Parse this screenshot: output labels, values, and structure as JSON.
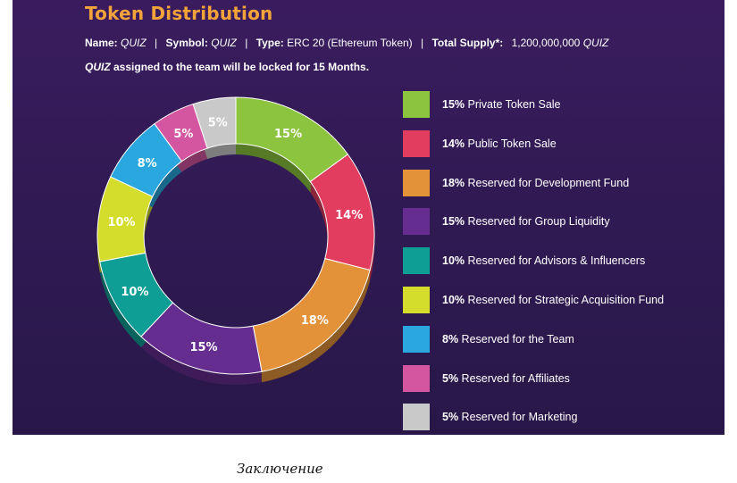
{
  "header": {
    "title": "Token Distribution",
    "name_label": "Name:",
    "name_value": "QUIZ",
    "symbol_label": "Symbol:",
    "symbol_value": "QUIZ",
    "type_label": "Type:",
    "type_value": "ERC 20 (Ethereum Token)",
    "supply_label": "Total Supply*:",
    "supply_value": "1,200,000,000",
    "supply_unit": "QUIZ",
    "separator": "|",
    "lock_token": "QUIZ",
    "lock_text": " assigned to the team will be locked for 15 Months."
  },
  "chart_data": {
    "type": "pie",
    "title": "Token Distribution",
    "unit": "%",
    "slices": [
      {
        "label": "Private Token Sale",
        "value": 15,
        "color": "#8cc43f"
      },
      {
        "label": "Public Token Sale",
        "value": 14,
        "color": "#e23d5e"
      },
      {
        "label": "Reserved for Development Fund",
        "value": 18,
        "color": "#e3923a"
      },
      {
        "label": "Reserved for Group Liquidity",
        "value": 15,
        "color": "#652d8f"
      },
      {
        "label": "Reserved for Advisors & Influencers",
        "value": 10,
        "color": "#0f9e96"
      },
      {
        "label": "Reserved for Strategic Acquisition Fund",
        "value": 10,
        "color": "#d4dd2c"
      },
      {
        "label": "Reserved for the Team",
        "value": 8,
        "color": "#2aa7df"
      },
      {
        "label": "Reserved for Affiliates",
        "value": 5,
        "color": "#d455a0"
      },
      {
        "label": "Reserved for Marketing",
        "value": 5,
        "color": "#c9c9c9"
      }
    ],
    "legend_position": "right"
  },
  "legend": [
    {
      "pct": "15%",
      "text": "Private Token Sale"
    },
    {
      "pct": "14%",
      "text": "Public Token Sale"
    },
    {
      "pct": "18%",
      "text": "Reserved for Development Fund"
    },
    {
      "pct": "15%",
      "text": "Reserved for Group Liquidity"
    },
    {
      "pct": "10%",
      "text": "Reserved for Advisors & Influencers"
    },
    {
      "pct": "10%",
      "text": "Reserved for Strategic Acquisition Fund"
    },
    {
      "pct": "8%",
      "text": "Reserved for the Team"
    },
    {
      "pct": "5%",
      "text": "Reserved for Affiliates"
    },
    {
      "pct": "5%",
      "text": "Reserved for Marketing"
    }
  ],
  "caption": "Заключение"
}
